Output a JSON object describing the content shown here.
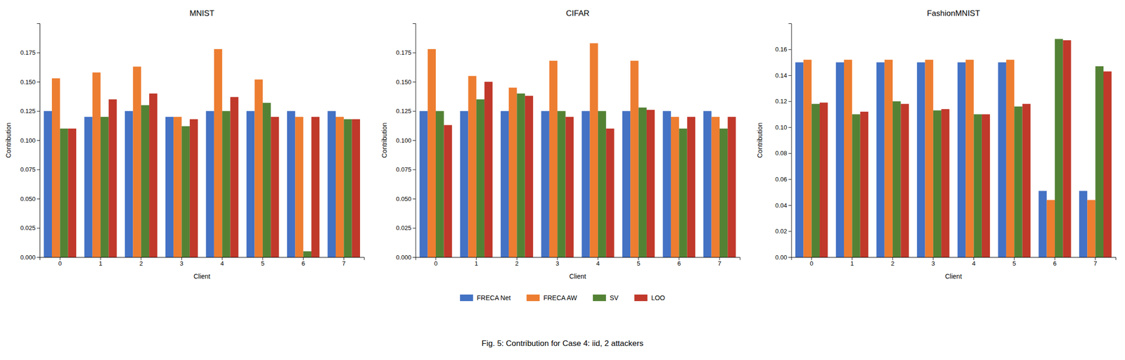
{
  "chart_data": [
    {
      "type": "bar",
      "title": "MNIST",
      "x_label": "Client",
      "y_label": "Contribution",
      "categories": [
        "0",
        "1",
        "2",
        "3",
        "4",
        "5",
        "6",
        "7"
      ],
      "series": [
        {
          "name": "FRECA Net",
          "color": "#4472c4",
          "values": [
            0.125,
            0.12,
            0.125,
            0.12,
            0.125,
            0.125,
            0.125,
            0.125
          ]
        },
        {
          "name": "FRECA AW",
          "color": "#ed7d31",
          "values": [
            0.153,
            0.158,
            0.163,
            0.12,
            0.178,
            0.152,
            0.12,
            0.12
          ]
        },
        {
          "name": "SV",
          "color": "#548235",
          "values": [
            0.11,
            0.12,
            0.13,
            0.112,
            0.125,
            0.132,
            0.005,
            0.118
          ]
        },
        {
          "name": "LOO",
          "color": "#c0392b",
          "values": [
            0.11,
            0.135,
            0.14,
            0.118,
            0.137,
            0.12,
            0.12,
            0.118
          ]
        }
      ],
      "ylim": [
        0.0,
        0.2
      ],
      "yticks": [
        {
          "value": 0.0,
          "label": "0.000"
        },
        0.025,
        {
          "value": 0.05,
          "label": "0.050"
        },
        0.075,
        {
          "value": 0.1,
          "label": "0.100"
        },
        0.125,
        {
          "value": 0.15,
          "label": "0.150"
        },
        0.175
      ],
      "legend": "bottom"
    },
    {
      "type": "bar",
      "title": "CIFAR",
      "x_label": "Client",
      "y_label": "Contribution",
      "categories": [
        "0",
        "1",
        "2",
        "3",
        "4",
        "5",
        "6",
        "7"
      ],
      "series": [
        {
          "name": "FRECA Net",
          "color": "#4472c4",
          "values": [
            0.125,
            0.125,
            0.125,
            0.125,
            0.125,
            0.125,
            0.125,
            0.125
          ]
        },
        {
          "name": "FRECA AW",
          "color": "#ed7d31",
          "values": [
            0.178,
            0.155,
            0.145,
            0.168,
            0.183,
            0.168,
            0.12,
            0.12
          ]
        },
        {
          "name": "SV",
          "color": "#548235",
          "values": [
            0.125,
            0.135,
            0.14,
            0.125,
            0.125,
            0.128,
            0.11,
            0.11
          ]
        },
        {
          "name": "LOO",
          "color": "#c0392b",
          "values": [
            0.113,
            0.15,
            0.138,
            0.12,
            0.11,
            0.126,
            0.12,
            0.12
          ]
        }
      ],
      "ylim": [
        0.0,
        0.2
      ],
      "yticks": [
        {
          "value": 0.0,
          "label": "0.000"
        },
        0.025,
        {
          "value": 0.05,
          "label": "0.050"
        },
        0.075,
        {
          "value": 0.1,
          "label": "0.100"
        },
        0.125,
        {
          "value": 0.15,
          "label": "0.150"
        },
        0.175
      ]
    },
    {
      "type": "bar",
      "title": "FashionMNIST",
      "x_label": "Client",
      "y_label": "Contribution",
      "categories": [
        "0",
        "1",
        "2",
        "3",
        "4",
        "5",
        "6",
        "7"
      ],
      "series": [
        {
          "name": "FRECA Net",
          "color": "#4472c4",
          "values": [
            0.15,
            0.15,
            0.15,
            0.15,
            0.15,
            0.15,
            0.051,
            0.051
          ]
        },
        {
          "name": "FRECA AW",
          "color": "#ed7d31",
          "values": [
            0.152,
            0.152,
            0.152,
            0.152,
            0.152,
            0.152,
            0.044,
            0.044
          ]
        },
        {
          "name": "SV",
          "color": "#548235",
          "values": [
            0.118,
            0.11,
            0.12,
            0.113,
            0.11,
            0.116,
            0.168,
            0.147
          ]
        },
        {
          "name": "LOO",
          "color": "#c0392b",
          "values": [
            0.119,
            0.112,
            0.118,
            0.114,
            0.11,
            0.118,
            0.167,
            0.143
          ]
        }
      ],
      "ylim": [
        0.0,
        0.18
      ],
      "yticks": [
        {
          "value": 0.0,
          "label": "0.00"
        },
        0.02,
        0.04,
        0.06,
        0.08,
        {
          "value": 0.1,
          "label": "0.10"
        },
        0.12,
        0.14,
        0.16
      ]
    }
  ],
  "caption": "Fig. 5: Contribution for Case 4: iid, 2 attackers"
}
